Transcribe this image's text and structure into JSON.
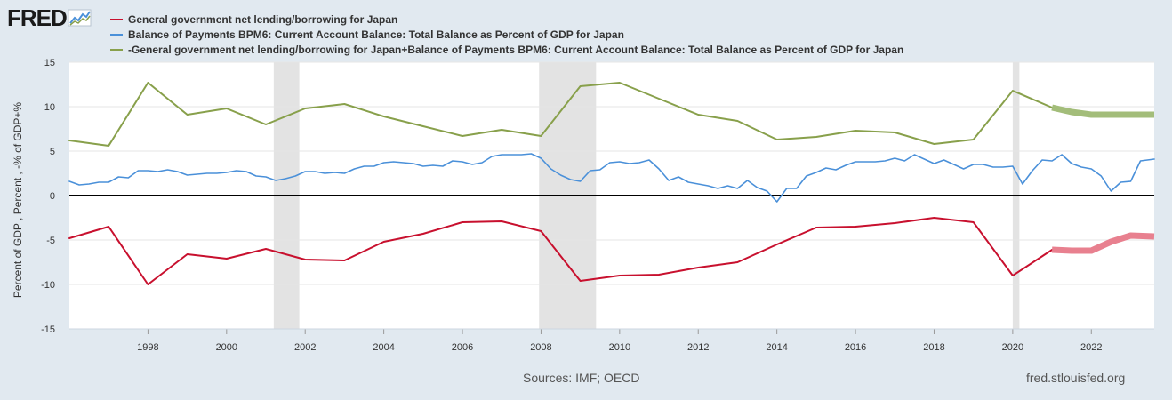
{
  "brand": {
    "logo_text": "FRED"
  },
  "legend": [
    {
      "label": "General government net lending/borrowing for Japan",
      "color": "#c8102e"
    },
    {
      "label": "Balance of Payments BPM6: Current Account Balance: Total Balance as Percent of GDP for Japan",
      "color": "#4a90d9"
    },
    {
      "label": "-General government net lending/borrowing for Japan+Balance of Payments BPM6: Current Account Balance: Total Balance as Percent of GDP for Japan",
      "color": "#88a04b"
    }
  ],
  "footer": {
    "sources": "Sources: IMF; OECD",
    "site": "fred.stlouisfed.org"
  },
  "chart_data": {
    "type": "line",
    "ylabel": "Percent of GDP , Percent , -% of GDP+%",
    "ylim": [
      -15,
      15
    ],
    "xlim": [
      1996.0,
      2023.6
    ],
    "yticks": [
      "15",
      "10",
      "5",
      "0",
      "-5",
      "-10",
      "-15"
    ],
    "ytick_values": [
      15,
      10,
      5,
      0,
      -5,
      -10,
      -15
    ],
    "xticks": [
      "1998",
      "2000",
      "2002",
      "2004",
      "2006",
      "2008",
      "2010",
      "2012",
      "2014",
      "2016",
      "2018",
      "2020",
      "2022"
    ],
    "xtick_values": [
      1998,
      2000,
      2002,
      2004,
      2006,
      2008,
      2010,
      2012,
      2014,
      2016,
      2018,
      2020,
      2022
    ],
    "zero_line": true,
    "grid": true,
    "recessions": [
      [
        2001.2,
        2001.85
      ],
      [
        2007.95,
        2009.4
      ],
      [
        2020.0,
        2020.17
      ]
    ],
    "series": [
      {
        "name": "General government net lending/borrowing for Japan",
        "color": "#c8102e",
        "x": [
          1996,
          1997,
          1998,
          1999,
          2000,
          2001,
          2002,
          2003,
          2004,
          2005,
          2006,
          2007,
          2008,
          2009,
          2010,
          2011,
          2012,
          2013,
          2014,
          2015,
          2016,
          2017,
          2018,
          2019,
          2020,
          2021
        ],
        "y": [
          -4.8,
          -3.5,
          -10.0,
          -6.6,
          -7.1,
          -6.0,
          -7.2,
          -7.3,
          -5.2,
          -4.3,
          -3.0,
          -2.9,
          -4.0,
          -9.6,
          -9.0,
          -8.9,
          -8.1,
          -7.5,
          -5.5,
          -3.6,
          -3.5,
          -3.1,
          -2.5,
          -3.0,
          -9.0,
          -6.1
        ]
      },
      {
        "name": "General government net lending/borrowing for Japan (forecast)",
        "color": "#e8808f",
        "forecast": true,
        "x": [
          2021,
          2021.5,
          2022,
          2022.5,
          2023,
          2023.6
        ],
        "y": [
          -6.1,
          -6.2,
          -6.2,
          -5.2,
          -4.5,
          -4.6
        ]
      },
      {
        "name": "Balance of Payments BPM6: Current Account Balance: Total Balance as Percent of GDP for Japan",
        "color": "#4a90d9",
        "x": [
          1996,
          1996.25,
          1996.5,
          1996.75,
          1997,
          1997.25,
          1997.5,
          1997.75,
          1998,
          1998.25,
          1998.5,
          1998.75,
          1999,
          1999.25,
          1999.5,
          1999.75,
          2000,
          2000.25,
          2000.5,
          2000.75,
          2001,
          2001.25,
          2001.5,
          2001.75,
          2002,
          2002.25,
          2002.5,
          2002.75,
          2003,
          2003.25,
          2003.5,
          2003.75,
          2004,
          2004.25,
          2004.5,
          2004.75,
          2005,
          2005.25,
          2005.5,
          2005.75,
          2006,
          2006.25,
          2006.5,
          2006.75,
          2007,
          2007.25,
          2007.5,
          2007.75,
          2008,
          2008.25,
          2008.5,
          2008.75,
          2009,
          2009.25,
          2009.5,
          2009.75,
          2010,
          2010.25,
          2010.5,
          2010.75,
          2011,
          2011.25,
          2011.5,
          2011.75,
          2012,
          2012.25,
          2012.5,
          2012.75,
          2013,
          2013.25,
          2013.5,
          2013.75,
          2014,
          2014.25,
          2014.5,
          2014.75,
          2015,
          2015.25,
          2015.5,
          2015.75,
          2016,
          2016.25,
          2016.5,
          2016.75,
          2017,
          2017.25,
          2017.5,
          2017.75,
          2018,
          2018.25,
          2018.5,
          2018.75,
          2019,
          2019.25,
          2019.5,
          2019.75,
          2020,
          2020.25,
          2020.5,
          2020.75,
          2021,
          2021.25,
          2021.5,
          2021.75,
          2022,
          2022.25,
          2022.5,
          2022.75,
          2023,
          2023.25,
          2023.6
        ],
        "y": [
          1.6,
          1.2,
          1.3,
          1.5,
          1.5,
          2.1,
          2.0,
          2.8,
          2.8,
          2.7,
          2.9,
          2.7,
          2.3,
          2.4,
          2.5,
          2.5,
          2.6,
          2.8,
          2.7,
          2.2,
          2.1,
          1.7,
          1.9,
          2.2,
          2.7,
          2.7,
          2.5,
          2.6,
          2.5,
          3.0,
          3.3,
          3.3,
          3.7,
          3.8,
          3.7,
          3.6,
          3.3,
          3.4,
          3.3,
          3.9,
          3.8,
          3.5,
          3.7,
          4.4,
          4.6,
          4.6,
          4.6,
          4.7,
          4.2,
          3.0,
          2.3,
          1.8,
          1.6,
          2.8,
          2.9,
          3.7,
          3.8,
          3.6,
          3.7,
          4.0,
          3.0,
          1.7,
          2.1,
          1.5,
          1.3,
          1.1,
          0.8,
          1.1,
          0.8,
          1.7,
          0.9,
          0.5,
          -0.7,
          0.8,
          0.8,
          2.2,
          2.6,
          3.1,
          2.9,
          3.4,
          3.8,
          3.8,
          3.8,
          3.9,
          4.2,
          3.9,
          4.6,
          4.1,
          3.6,
          4.0,
          3.5,
          3.0,
          3.5,
          3.5,
          3.2,
          3.2,
          3.3,
          1.3,
          2.8,
          4.0,
          3.9,
          4.6,
          3.6,
          3.2,
          3.0,
          2.2,
          0.5,
          1.5,
          1.6,
          3.9,
          4.1
        ]
      },
      {
        "name": "-General government net lending/borrowing for Japan+Balance of Payments BPM6: Current Account Balance: Total Balance as Percent of GDP for Japan",
        "color": "#88a04b",
        "x": [
          1996,
          1997,
          1998,
          1999,
          2000,
          2001,
          2002,
          2003,
          2004,
          2005,
          2006,
          2007,
          2008,
          2009,
          2010,
          2011,
          2012,
          2013,
          2014,
          2015,
          2016,
          2017,
          2018,
          2019,
          2020,
          2021
        ],
        "y": [
          6.2,
          5.6,
          12.7,
          9.1,
          9.8,
          8.0,
          9.8,
          10.3,
          8.9,
          7.8,
          6.7,
          7.4,
          6.7,
          12.3,
          12.7,
          10.9,
          9.1,
          8.4,
          6.3,
          6.6,
          7.3,
          7.1,
          5.8,
          6.3,
          11.8,
          9.9
        ]
      },
      {
        "name": "-General government net lending/borrowing for Japan+Balance of Payments BPM6: Current Account Balance: Total Balance as Percent of GDP for Japan (forecast)",
        "color": "#a3bd7a",
        "forecast": true,
        "x": [
          2021,
          2021.5,
          2022,
          2022.5,
          2023,
          2023.6
        ],
        "y": [
          9.9,
          9.4,
          9.1,
          9.1,
          9.1,
          9.1
        ]
      }
    ]
  }
}
